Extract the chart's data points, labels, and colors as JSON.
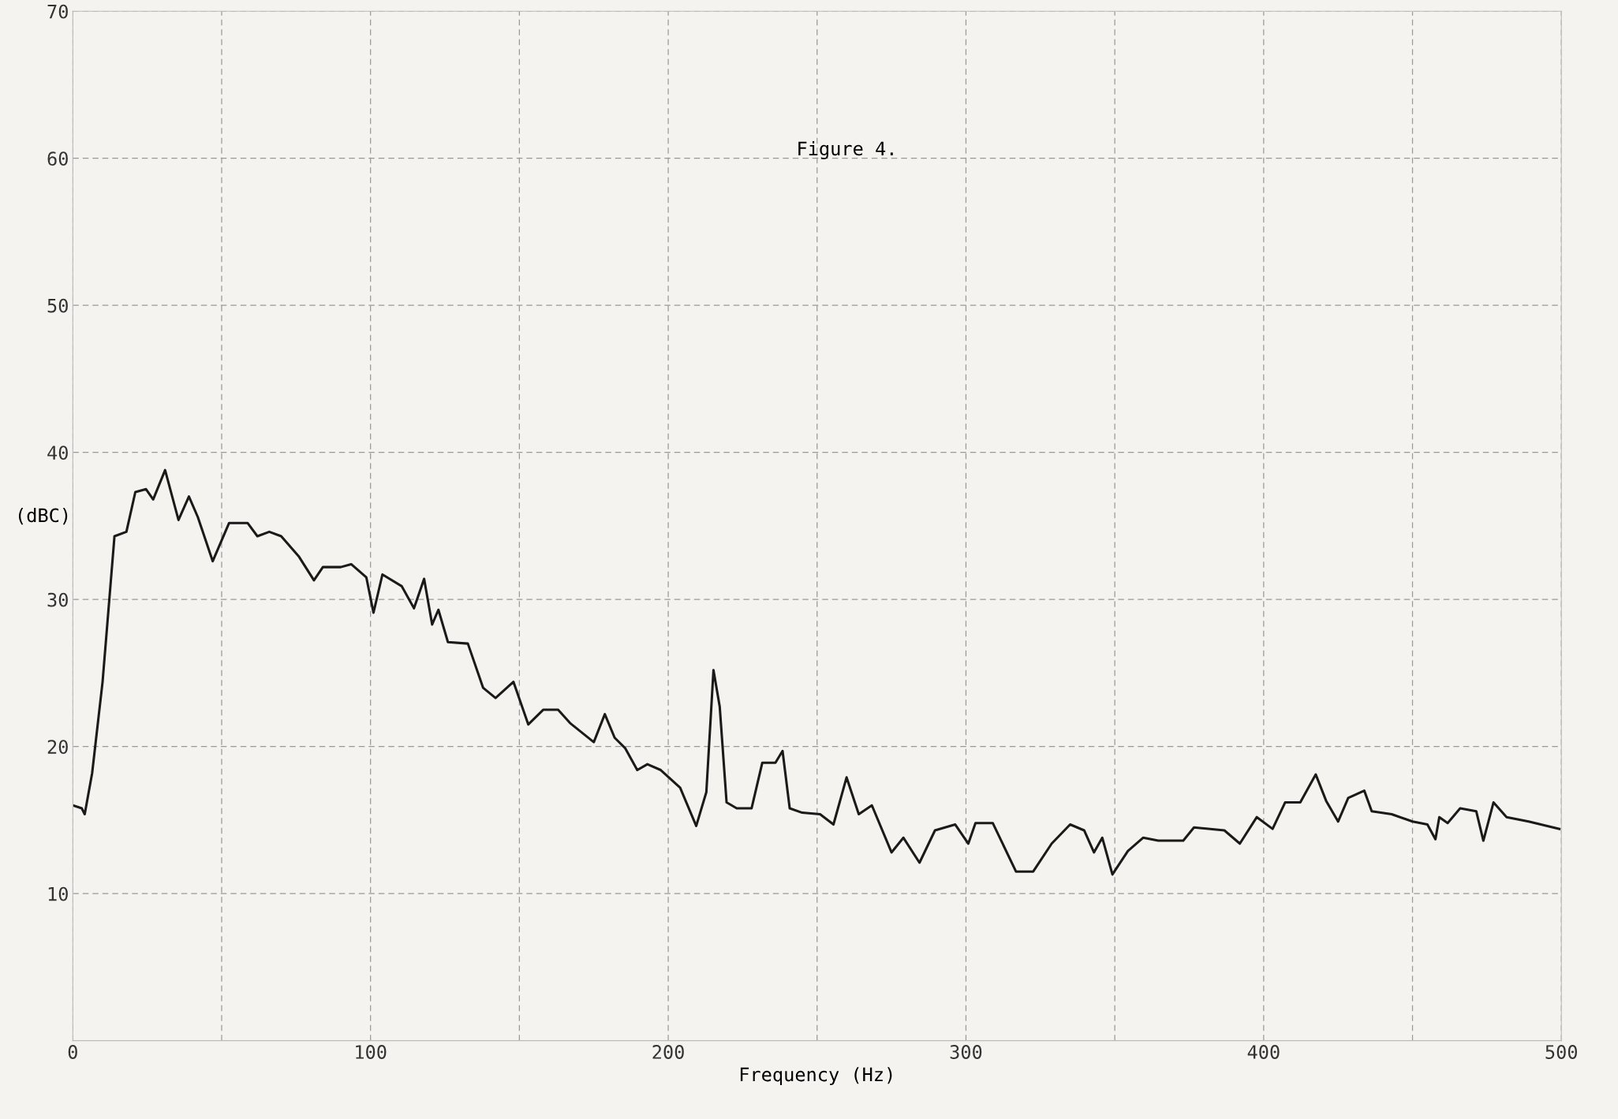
{
  "chart_data": {
    "type": "line",
    "title": "Figure 4.",
    "xlabel": "Frequency (Hz)",
    "ylabel": "(dBC)",
    "xlim": [
      0,
      500
    ],
    "ylim": [
      0,
      70
    ],
    "xticks": [
      0,
      {
        "value": 50,
        "label": null
      },
      100,
      {
        "value": 150,
        "label": null
      },
      200,
      {
        "value": 250,
        "label": null
      },
      300,
      {
        "value": 350,
        "label": null
      },
      400,
      {
        "value": 450,
        "label": null
      },
      500
    ],
    "yticks": [
      10,
      20,
      30,
      40,
      50,
      60,
      70
    ],
    "grid": true,
    "line_style": "solid",
    "marker": "none",
    "x": [
      0,
      3,
      4,
      6.5,
      10,
      14,
      18,
      21,
      24.6,
      27,
      31,
      35.5,
      39,
      42,
      47,
      52.5,
      58.7,
      62,
      66,
      70,
      76,
      81,
      84,
      90,
      93.5,
      98.6,
      101,
      104,
      110.5,
      114.6,
      118,
      120.7,
      122.8,
      126,
      132.7,
      137.8,
      142,
      148,
      153,
      158,
      163,
      167,
      175,
      178.7,
      182,
      185.5,
      189.6,
      193,
      197.5,
      204,
      209.4,
      212.8,
      215.2,
      217.3,
      219.6,
      223,
      228,
      231.6,
      236,
      238.4,
      240.8,
      245,
      251,
      255.5,
      259.9,
      264,
      268.4,
      275,
      279,
      284.4,
      289.6,
      296.4,
      300.8,
      303.2,
      309,
      316.8,
      322.6,
      328.8,
      335,
      339.7,
      343,
      345.8,
      349.2,
      354.4,
      359.5,
      364.6,
      373,
      376.6,
      386.8,
      392,
      397.7,
      403,
      407.2,
      412.3,
      417.5,
      421,
      425,
      428.4,
      433.8,
      436.3,
      443,
      450,
      455,
      457.7,
      459,
      461.8,
      466,
      471.4,
      473.8,
      477.2,
      481.6,
      489,
      499.3
    ],
    "series": [
      {
        "color": "#1a1a1a",
        "values": [
          16.0,
          15.8,
          15.4,
          18.2,
          24.4,
          34.3,
          34.6,
          37.3,
          37.5,
          36.8,
          38.8,
          35.4,
          37.0,
          35.6,
          32.6,
          35.2,
          35.2,
          34.3,
          34.6,
          34.3,
          32.9,
          31.3,
          32.2,
          32.2,
          32.4,
          31.5,
          29.1,
          31.7,
          30.9,
          29.4,
          31.4,
          28.3,
          29.3,
          27.1,
          27.0,
          24.0,
          23.3,
          24.4,
          21.5,
          22.5,
          22.5,
          21.6,
          20.3,
          22.2,
          20.6,
          19.9,
          18.4,
          18.8,
          18.4,
          17.2,
          14.6,
          16.9,
          25.2,
          22.7,
          16.2,
          15.8,
          15.8,
          18.9,
          18.9,
          19.7,
          15.8,
          15.5,
          15.4,
          14.7,
          17.9,
          15.4,
          16.0,
          12.8,
          13.8,
          12.1,
          14.3,
          14.7,
          13.4,
          14.8,
          14.8,
          11.5,
          11.5,
          13.4,
          14.7,
          14.3,
          12.8,
          13.8,
          11.3,
          12.9,
          13.8,
          13.6,
          13.6,
          14.5,
          14.3,
          13.4,
          15.2,
          14.4,
          16.2,
          16.2,
          18.1,
          16.3,
          14.9,
          16.5,
          17.0,
          15.6,
          15.4,
          14.9,
          14.7,
          13.7,
          15.2,
          14.8,
          15.8,
          15.6,
          13.6,
          16.2,
          15.2,
          14.9,
          14.4
        ]
      }
    ]
  }
}
